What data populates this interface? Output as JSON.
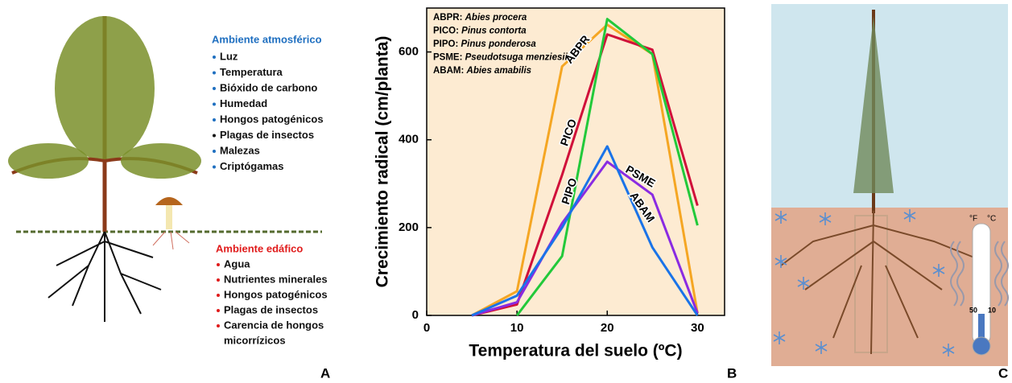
{
  "panel_a": {
    "letter": "A",
    "atmosphere_title": "Ambiente atmosférico",
    "atmosphere_items": [
      "Luz",
      "Temperatura",
      "Bióxido de carbono",
      "Humedad",
      "Hongos patogénicos",
      "Plagas de insectos",
      "Malezas",
      "Criptógamas"
    ],
    "soil_title": "Ambiente edáfico",
    "soil_items": [
      "Agua",
      "Nutrientes minerales",
      "Hongos patogénicos",
      "Plagas de insectos",
      "Carencia de hongos",
      "micorrízicos"
    ]
  },
  "chart_data": {
    "type": "line",
    "letter": "B",
    "xlabel": "Temperatura del suelo (ºC)",
    "ylabel": "Crecimiento radical (cm/planta)",
    "x": [
      5,
      10,
      15,
      20,
      25,
      30
    ],
    "series": [
      {
        "name": "ABPR",
        "species": "Abies procera",
        "color": "#f5a623",
        "values": [
          0,
          55,
          567,
          662,
          595,
          5
        ]
      },
      {
        "name": "PICO",
        "species": "Pinus contorta",
        "color": "#d0103a",
        "values": [
          0,
          25,
          320,
          640,
          605,
          250
        ]
      },
      {
        "name": "PIPO",
        "species": "Pinus ponderosa",
        "color": "#22c93a",
        "values": [
          null,
          0,
          135,
          675,
          595,
          205
        ]
      },
      {
        "name": "PSME",
        "species": "Pseudotsuga menziesii",
        "color": "#8a2be2",
        "values": [
          0,
          30,
          210,
          350,
          275,
          5
        ]
      },
      {
        "name": "ABAM",
        "species": "Abies amabilis",
        "color": "#1a73e8",
        "values": [
          0,
          45,
          200,
          385,
          155,
          0
        ]
      }
    ],
    "xlim": [
      0,
      33
    ],
    "ylim": [
      0,
      700
    ],
    "xticks": [
      0,
      10,
      20,
      30
    ],
    "yticks": [
      0,
      200,
      400,
      600
    ],
    "background": "#fdebd2",
    "grid": false
  },
  "panel_c": {
    "letter": "C",
    "fahrenheit": "°F",
    "celsius": "°C",
    "f_mark": "50",
    "c_mark": "10"
  }
}
